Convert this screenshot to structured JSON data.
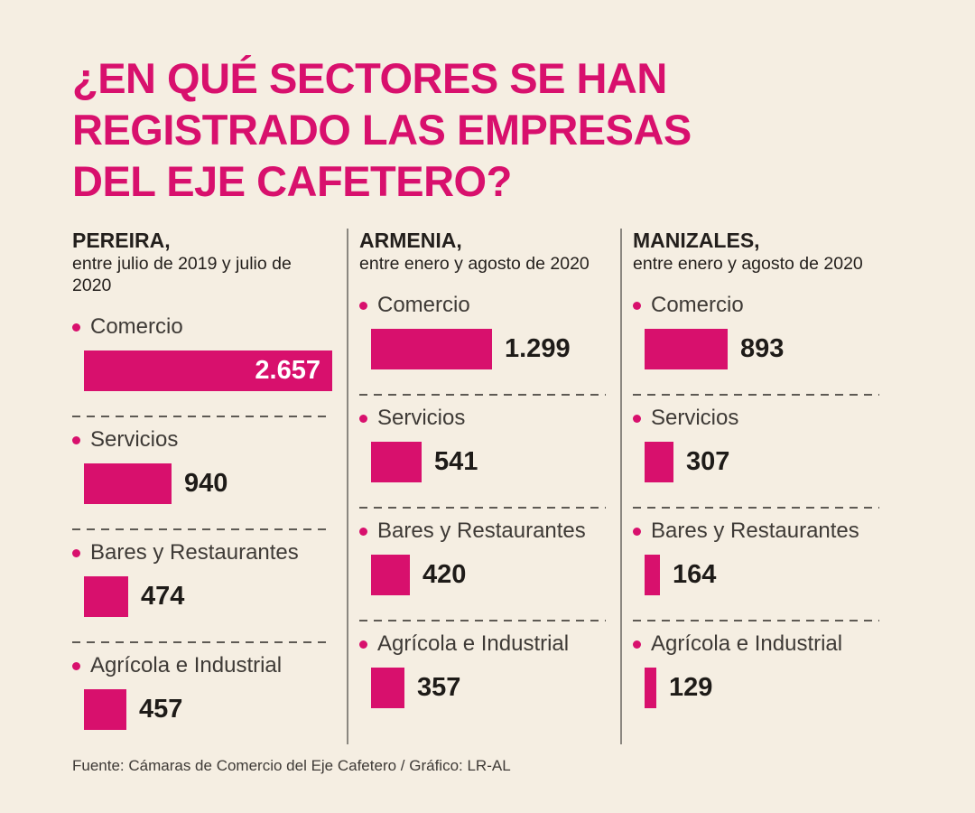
{
  "title": {
    "lines": [
      "¿EN QUÉ SECTORES SE HAN",
      "REGISTRADO LAS EMPRESAS",
      "DEL EJE CAFETERO?"
    ]
  },
  "chart_data": {
    "type": "bar",
    "orientation": "horizontal",
    "unit": "empresas registradas",
    "max_value": 2657,
    "grid": false,
    "legend": false,
    "categories": [
      "Comercio",
      "Servicios",
      "Bares y Restaurantes",
      "Agrícola e Industrial"
    ],
    "colors": {
      "bar": "#D8106D",
      "accent": "#D8106D",
      "background": "#F5EEE2"
    },
    "groups": [
      {
        "name": "PEREIRA,",
        "period": "entre julio de 2019 y julio de 2020",
        "sectors": [
          {
            "label": "Comercio",
            "value": 2657,
            "display": "2.657"
          },
          {
            "label": "Servicios",
            "value": 940,
            "display": "940"
          },
          {
            "label": "Bares y Restaurantes",
            "value": 474,
            "display": "474"
          },
          {
            "label": "Agrícola e Industrial",
            "value": 457,
            "display": "457"
          }
        ]
      },
      {
        "name": "ARMENIA,",
        "period": "entre enero y agosto de 2020",
        "sectors": [
          {
            "label": "Comercio",
            "value": 1299,
            "display": "1.299"
          },
          {
            "label": "Servicios",
            "value": 541,
            "display": "541"
          },
          {
            "label": "Bares y Restaurantes",
            "value": 420,
            "display": "420"
          },
          {
            "label": "Agrícola e Industrial",
            "value": 357,
            "display": "357"
          }
        ]
      },
      {
        "name": "MANIZALES,",
        "period": "entre enero y agosto de 2020",
        "sectors": [
          {
            "label": "Comercio",
            "value": 893,
            "display": "893"
          },
          {
            "label": "Servicios",
            "value": 307,
            "display": "307"
          },
          {
            "label": "Bares y Restaurantes",
            "value": 164,
            "display": "164"
          },
          {
            "label": "Agrícola e Industrial",
            "value": 129,
            "display": "129"
          }
        ]
      }
    ]
  },
  "footer": {
    "source": "Fuente: Cámaras de Comercio del Eje Cafetero / Gráfico: LR-AL"
  }
}
